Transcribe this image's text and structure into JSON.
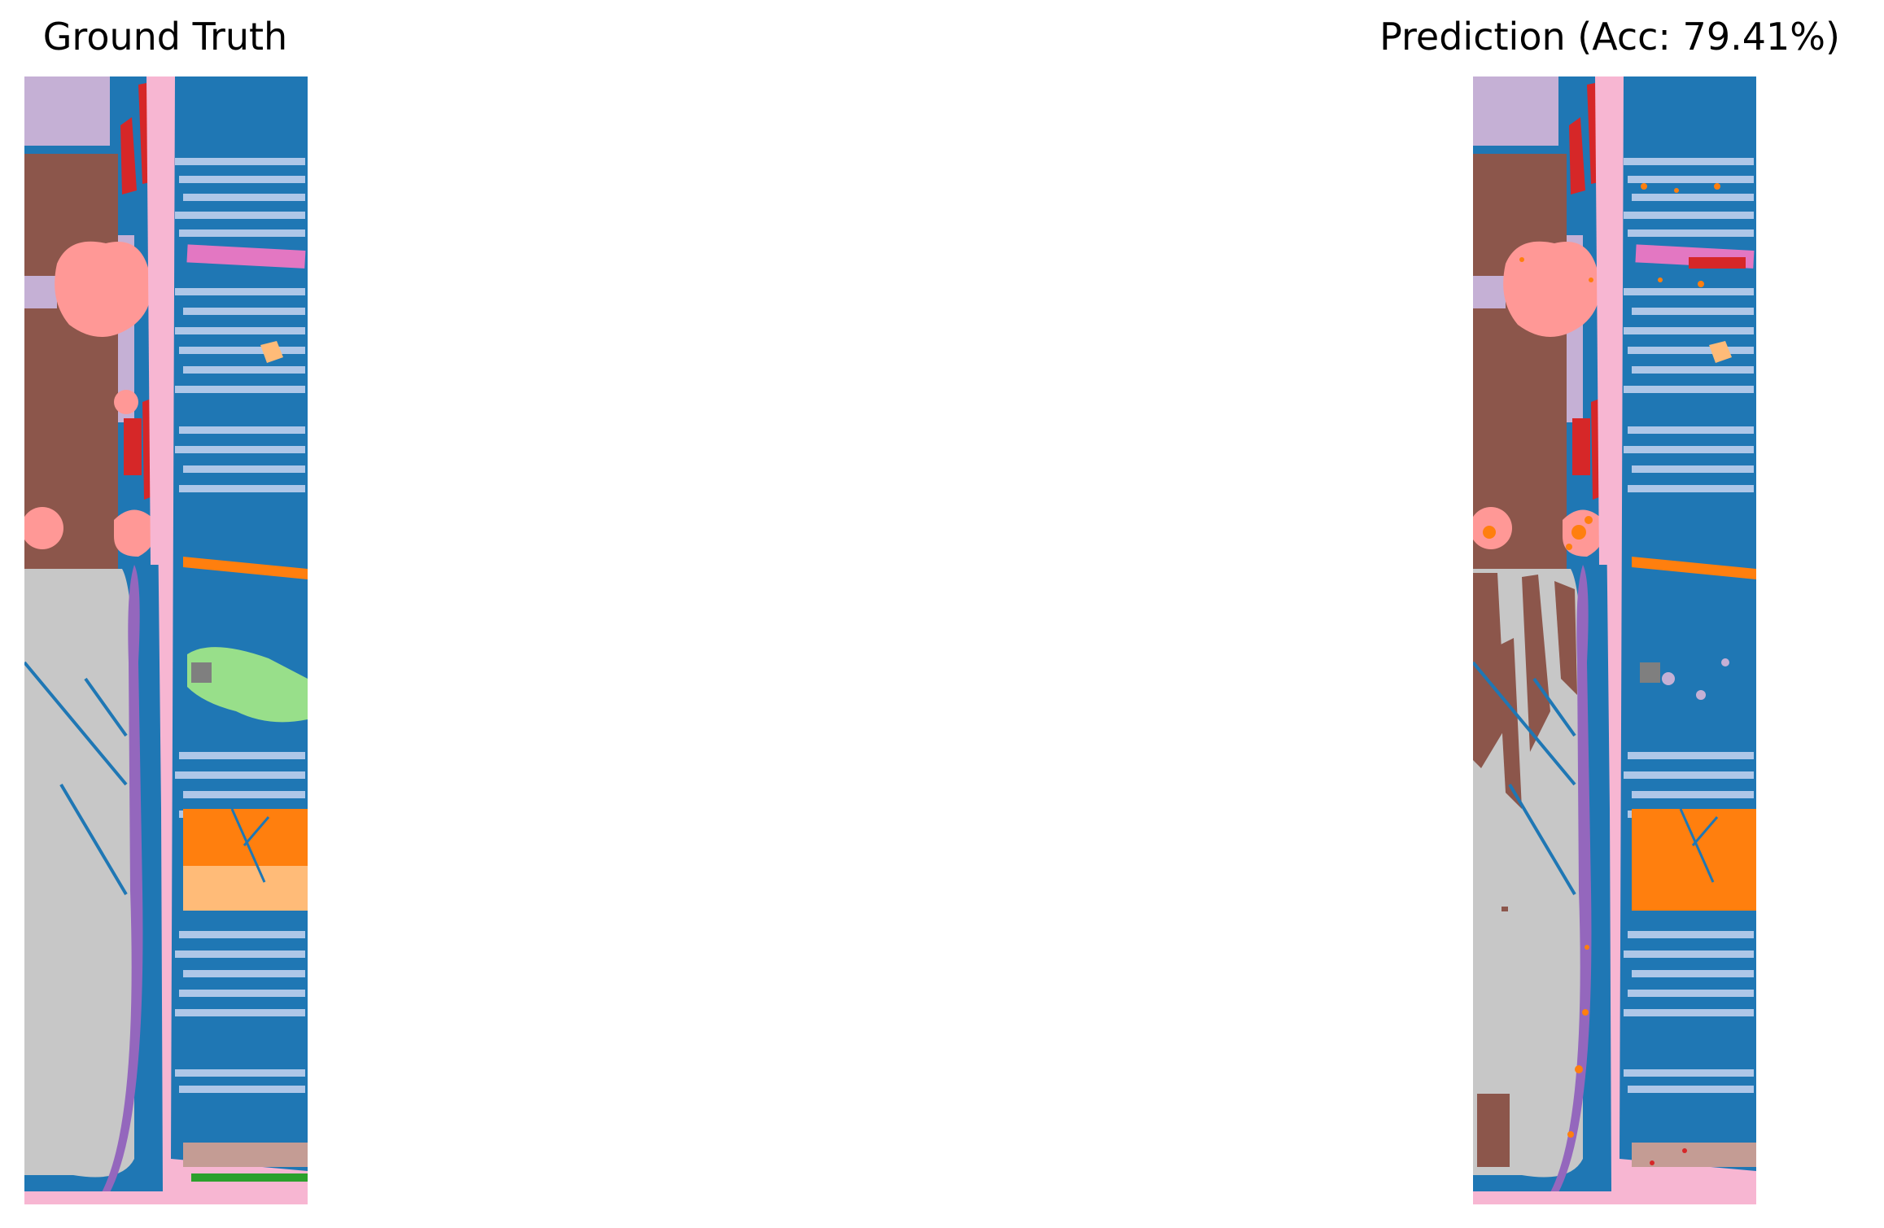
{
  "panels": {
    "left": {
      "title": "Ground Truth"
    },
    "right": {
      "title": "Prediction (Acc: 79.41%)"
    }
  },
  "palette": {
    "water_blue": "#1f77b4",
    "light_blue": "#aec7e8",
    "orange": "#ff7f0e",
    "light_orange": "#ffbb78",
    "green": "#2ca02c",
    "light_green": "#98df8a",
    "red": "#d62728",
    "salmon": "#ff9896",
    "purple": "#9467bd",
    "lavender": "#c5b0d5",
    "brown": "#8c564b",
    "tan": "#c49c94",
    "pink": "#e377c2",
    "light_pink": "#f7b6d2",
    "gray": "#7f7f7f",
    "light_gray": "#c7c7c7"
  }
}
